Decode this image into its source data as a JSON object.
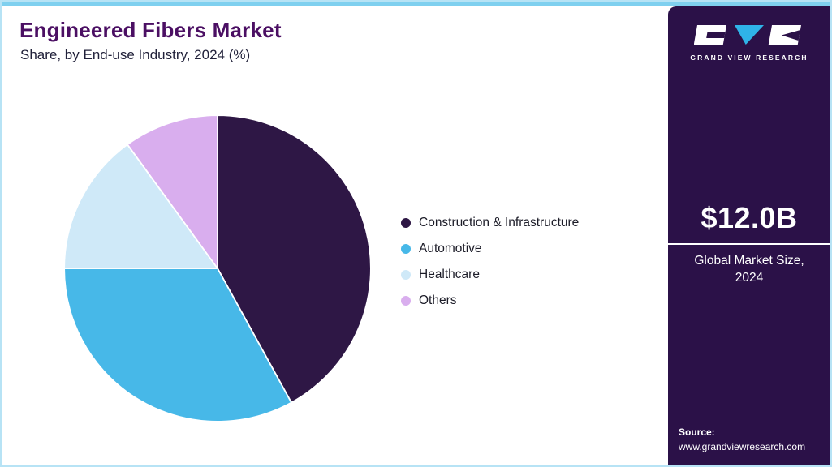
{
  "header": {
    "title": "Engineered Fibers Market",
    "subtitle": "Share, by End-use Industry, 2024 (%)"
  },
  "sidebar": {
    "brand_name": "GRAND VIEW RESEARCH",
    "market_size": "$12.0B",
    "market_size_label": "Global Market Size, 2024",
    "source_label": "Source:",
    "source_url": "www.grandviewresearch.com"
  },
  "chart_data": {
    "type": "pie",
    "title": "Engineered Fibers Market Share, by End-use Industry, 2024 (%)",
    "categories": [
      "Construction & Infrastructure",
      "Automotive",
      "Healthcare",
      "Others"
    ],
    "values": [
      42,
      33,
      15,
      10
    ],
    "colors": [
      "#2e1745",
      "#47b8e8",
      "#cfe9f8",
      "#d9aeee"
    ],
    "unit": "%",
    "start_angle_deg": 0,
    "direction": "clockwise",
    "legend_position": "right",
    "accent_colors": {
      "top_bar": "#7fd0ef",
      "sidebar": "#2b1148",
      "title": "#4b0f63"
    }
  }
}
